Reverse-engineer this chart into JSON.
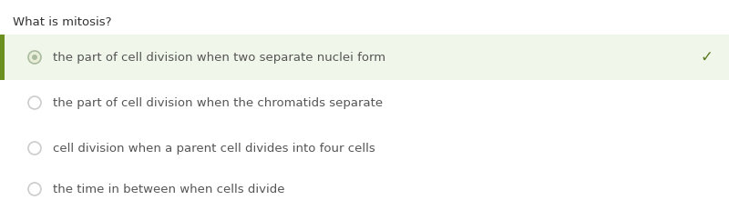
{
  "title": "What is mitosis?",
  "options": [
    "the part of cell division when two separate nuclei form",
    "the part of cell division when the chromatids separate",
    "cell division when a parent cell divides into four cells",
    "the time in between when cells divide"
  ],
  "correct_index": 0,
  "bg_color": "#ffffff",
  "highlight_bg": "#f1f6ea",
  "text_color": "#555555",
  "title_color": "#333333",
  "radio_color": "#cccccc",
  "radio_selected_fill": "#e8eed8",
  "radio_selected_border": "#aabba0",
  "radio_selected_dot": "#aabba0",
  "check_color": "#5a7a20",
  "left_bar_color": "#6b9020",
  "title_fontsize": 9.5,
  "option_fontsize": 9.5,
  "fig_width": 8.0,
  "fig_height": 2.31,
  "dpi": 100
}
